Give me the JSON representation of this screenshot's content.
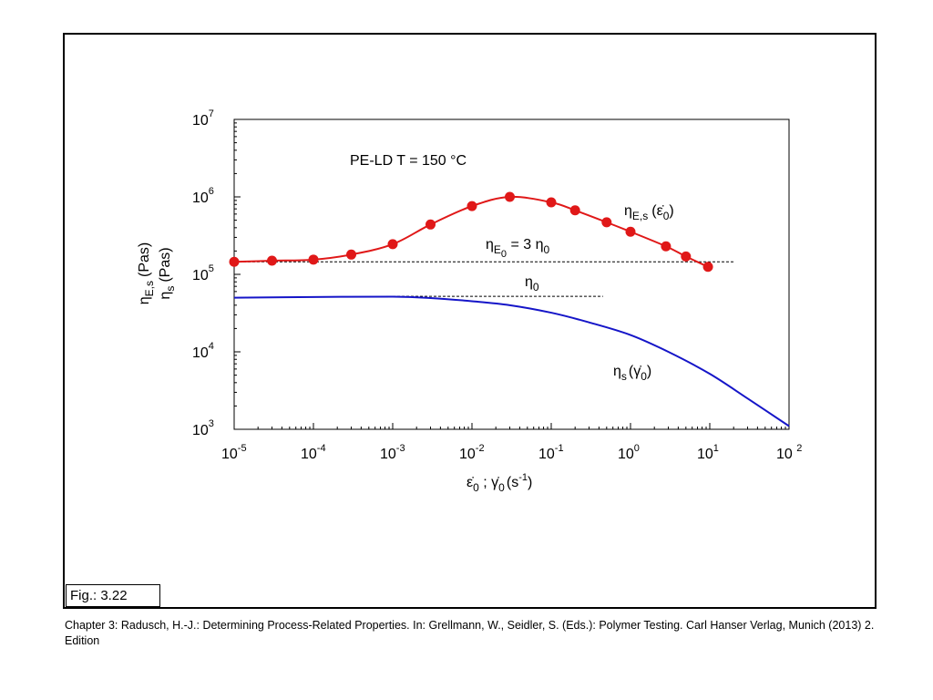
{
  "figure": {
    "label": "Fig.: 3.22",
    "caption": "Chapter 3: Radusch, H.-J.: Determining Process-Related Properties. In: Grellmann, W., Seidler, S. (Eds.): Polymer Testing. Carl Hanser Verlag, Munich (2013) 2. Edition"
  },
  "chart_data": {
    "type": "line",
    "title": "PE-LD  T = 150 °C",
    "xscale": "log",
    "yscale": "log",
    "xlim": [
      1e-05,
      100
    ],
    "ylim": [
      1000,
      10000000
    ],
    "x_ticks": [
      {
        "base": "10",
        "exp": "-5"
      },
      {
        "base": "10",
        "exp": "-4"
      },
      {
        "base": "10",
        "exp": "-3"
      },
      {
        "base": "10",
        "exp": "-2"
      },
      {
        "base": "10",
        "exp": "-1"
      },
      {
        "base": "10",
        "exp": "0"
      },
      {
        "base": "10",
        "exp": "1"
      },
      {
        "base": "10 ",
        "exp": "2"
      }
    ],
    "y_ticks": [
      {
        "base": "10",
        "exp": "3"
      },
      {
        "base": "10",
        "exp": "4"
      },
      {
        "base": "10",
        "exp": "5"
      },
      {
        "base": "10",
        "exp": "6"
      },
      {
        "base": "10",
        "exp": "7"
      }
    ],
    "xlabel": {
      "a": "ε̇",
      "a_sub": "0",
      "sep": " ; ",
      "b": "γ̇",
      "b_sub": "0",
      "unit": "(s",
      "unit_sup": "-1",
      "unit_end": ")"
    },
    "ylabel_outer": {
      "sym": "η",
      "sub": "E,s",
      "unit": "(Pas)"
    },
    "ylabel_inner": {
      "sym": "η",
      "sub": "s",
      "unit": "(Pas)"
    },
    "series": [
      {
        "name": "η_E,s (ε̇0)",
        "color": "#e01818",
        "label": {
          "sym": "η",
          "sub": "E,s",
          "arg": "(ε̇",
          "arg_sub": "0",
          "end": ")"
        },
        "points": [
          [
            1e-05,
            145000
          ],
          [
            3e-05,
            150000
          ],
          [
            0.0001,
            155000
          ],
          [
            0.0003,
            180000
          ],
          [
            0.001,
            245000
          ],
          [
            0.003,
            440000
          ],
          [
            0.01,
            760000
          ],
          [
            0.03,
            1000000
          ],
          [
            0.1,
            850000
          ],
          [
            0.2,
            670000
          ],
          [
            0.5,
            470000
          ],
          [
            1,
            355000
          ],
          [
            2.8,
            230000
          ],
          [
            5,
            170000
          ],
          [
            9.5,
            125000
          ]
        ]
      },
      {
        "name": "η_s (γ̇0)",
        "color": "#1515c8",
        "label": {
          "sym": "η",
          "sub": "s",
          "arg": "(γ̇",
          "arg_sub": "0",
          "end": ")"
        },
        "points": [
          [
            1e-05,
            50000
          ],
          [
            0.0001,
            51000
          ],
          [
            0.001,
            51500
          ],
          [
            0.003,
            49500
          ],
          [
            0.01,
            45000
          ],
          [
            0.03,
            40000
          ],
          [
            0.1,
            32000
          ],
          [
            0.3,
            24000
          ],
          [
            1,
            16500
          ],
          [
            3,
            10000
          ],
          [
            10,
            5200
          ],
          [
            30,
            2500
          ],
          [
            100,
            1100
          ]
        ]
      }
    ],
    "reference_lines": [
      {
        "name": "ηE0 = 3 η0",
        "y": 145000,
        "x_range": [
          1e-05,
          20
        ],
        "label": {
          "sym": "η",
          "sub": "E",
          "subsub": "0",
          "rest": " = 3 η",
          "rest_sub": "0"
        }
      },
      {
        "name": "η0",
        "y": 52000,
        "x_range": [
          0.001,
          0.45
        ],
        "label": {
          "sym": "η",
          "sub": "0"
        }
      }
    ],
    "grid": false,
    "legend": "none"
  }
}
